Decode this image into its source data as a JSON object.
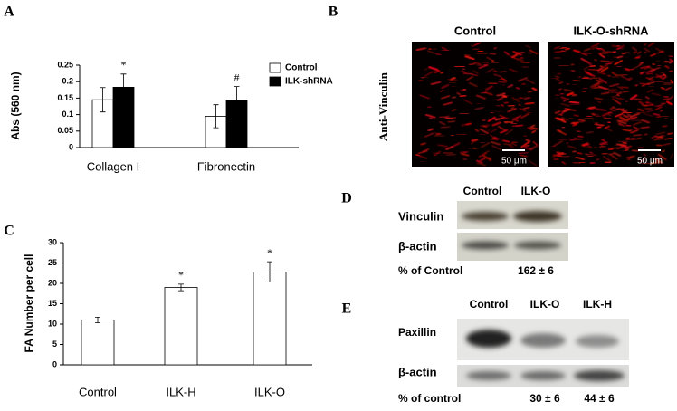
{
  "chart_data": [
    {
      "type": "bar",
      "panel": "A",
      "ylabel": "Abs (560 nm)",
      "categories": [
        "Collagen I",
        "Fibronectin"
      ],
      "series": [
        {
          "name": "Control",
          "color": "#ffffff",
          "values": [
            0.145,
            0.095
          ],
          "errors": [
            0.037,
            0.035
          ]
        },
        {
          "name": "ILK-shRNA",
          "color": "#000000",
          "values": [
            0.183,
            0.142
          ],
          "errors": [
            0.04,
            0.043
          ]
        }
      ],
      "annotations": [
        "*",
        "#"
      ],
      "ylim": [
        0,
        0.25
      ],
      "yticks": [
        0,
        0.05,
        0.1,
        0.15,
        0.2,
        0.25
      ],
      "grid": false
    },
    {
      "type": "bar",
      "panel": "C",
      "ylabel": "FA Number per cell",
      "categories": [
        "Control",
        "ILK-H",
        "ILK-O"
      ],
      "series": [
        {
          "color": "#ffffff",
          "values": [
            11,
            19,
            22.8
          ],
          "errors": [
            0.7,
            0.8,
            2.5
          ]
        }
      ],
      "annotations": [
        null,
        "*",
        "*"
      ],
      "ylim": [
        0,
        30
      ],
      "yticks": [
        0,
        5,
        10,
        15,
        20,
        25,
        30
      ],
      "grid": false
    }
  ],
  "panel_b": {
    "label": "B",
    "row_label": "Anti-Vinculin",
    "columns": [
      "Control",
      "ILK-O-shRNA"
    ],
    "scale_bars": [
      "50 μm",
      "50 μm"
    ]
  },
  "panel_d": {
    "label": "D",
    "columns": [
      "Control",
      "ILK-O"
    ],
    "rows": [
      "Vinculin",
      "β-actin"
    ],
    "quant_label": "% of Control",
    "quant_values": [
      "162 ± 6"
    ]
  },
  "panel_e": {
    "label": "E",
    "columns": [
      "Control",
      "ILK-O",
      "ILK-H"
    ],
    "rows": [
      "Paxillin",
      "β-actin"
    ],
    "quant_label": "% of control",
    "quant_values": [
      "30 ± 6",
      "44 ± 6"
    ]
  }
}
